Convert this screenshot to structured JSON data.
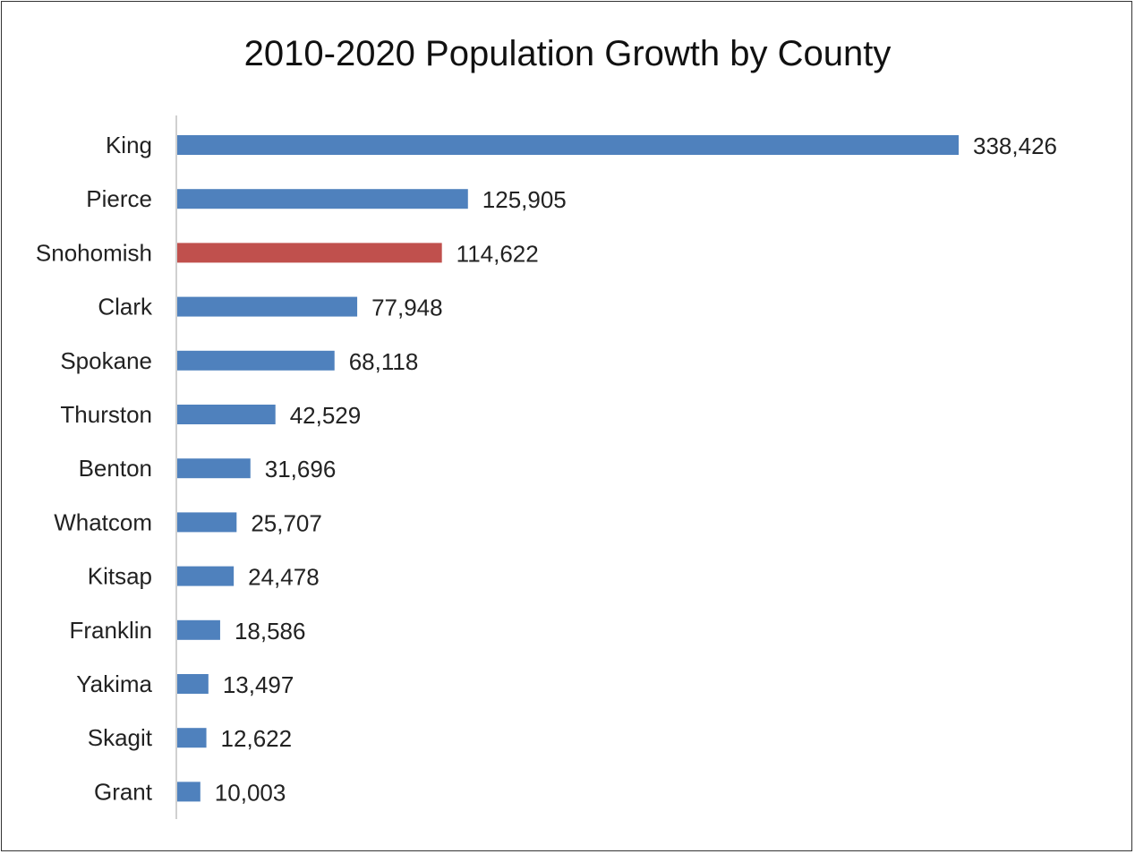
{
  "chart_data": {
    "type": "bar",
    "orientation": "horizontal",
    "title": "2010-2020 Population Growth by County",
    "xlabel": "",
    "ylabel": "",
    "categories": [
      "King",
      "Pierce",
      "Snohomish",
      "Clark",
      "Spokane",
      "Thurston",
      "Benton",
      "Whatcom",
      "Kitsap",
      "Franklin",
      "Yakima",
      "Skagit",
      "Grant"
    ],
    "values": [
      338426,
      125905,
      114622,
      77948,
      68118,
      42529,
      31696,
      25707,
      24478,
      18586,
      13497,
      12622,
      10003
    ],
    "value_labels": [
      "338,426",
      "125,905",
      "114,622",
      "77,948",
      "68,118",
      "42,529",
      "31,696",
      "25,707",
      "24,478",
      "18,586",
      "13,497",
      "12,622",
      "10,003"
    ],
    "xlim": [
      0,
      338426
    ],
    "grid": false,
    "legend": "none",
    "highlight": "Snohomish",
    "colors": {
      "default": "#4f81bd",
      "highlight": "#c0504d"
    }
  }
}
